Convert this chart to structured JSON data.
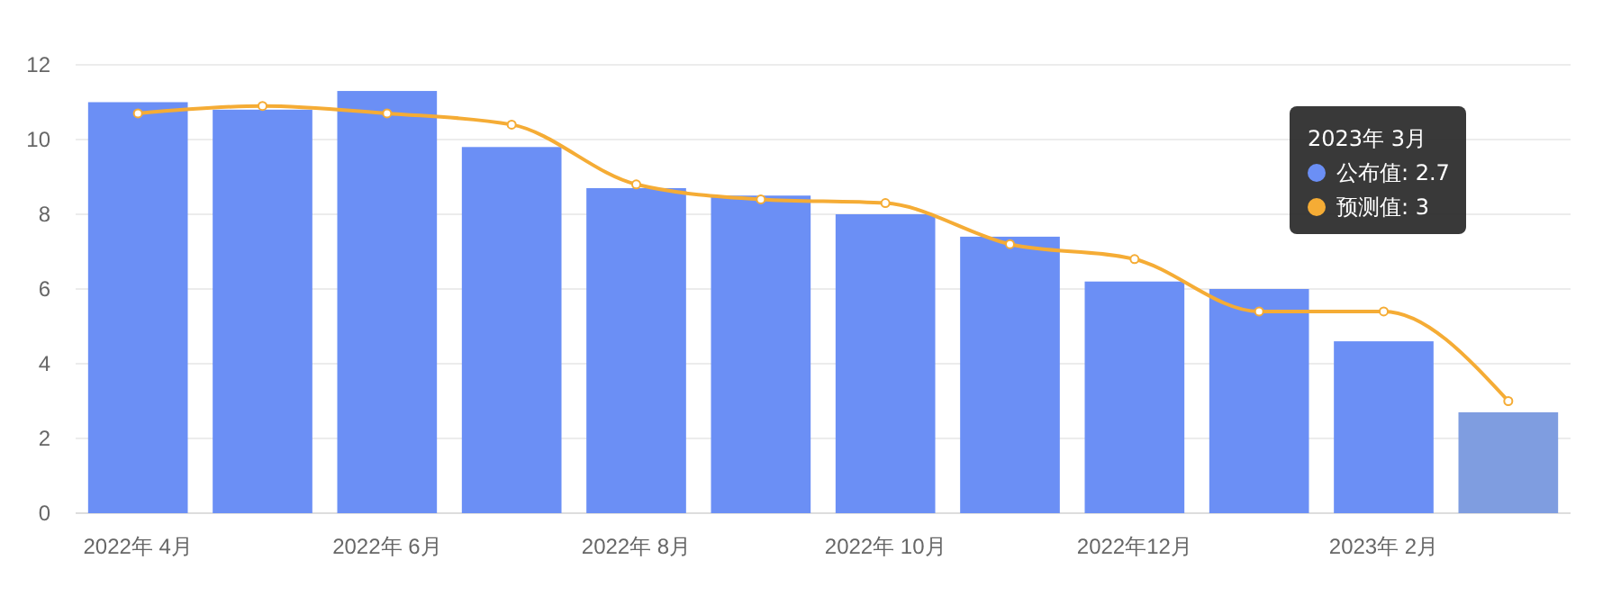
{
  "chart_data": {
    "type": "bar",
    "categories": [
      "2022年 4月",
      null,
      "2022年 6月",
      null,
      "2022年 8月",
      null,
      "2022年 10月",
      null,
      "2022年12月",
      null,
      "2023年 2月",
      null
    ],
    "series": [
      {
        "color": "#6b8ff5",
        "colors": [
          "#6b8ff5",
          "#6b8ff5",
          "#6b8ff5",
          "#6b8ff5",
          "#6b8ff5",
          "#6b8ff5",
          "#6b8ff5",
          "#6b8ff5",
          "#6b8ff5",
          "#6b8ff5",
          "#6b8ff5",
          "#7f9de0"
        ],
        "values": [
          11,
          10.8,
          11.3,
          9.8,
          8.7,
          8.5,
          8.0,
          7.4,
          6.2,
          6.0,
          4.6,
          2.7
        ]
      },
      {
        "type": "line",
        "color": "#f5ac35",
        "values": [
          10.7,
          10.9,
          10.7,
          10.4,
          8.8,
          8.4,
          8.3,
          7.2,
          6.8,
          5.4,
          5.4,
          3
        ]
      }
    ],
    "ylim": [
      0,
      12
    ],
    "yticks": [
      0,
      2,
      4,
      6,
      8,
      10,
      12
    ],
    "grid": "y",
    "marker": "circle",
    "annotations": [
      "2023年 3月",
      "公布值: 2.7",
      "预测值: 3"
    ]
  }
}
